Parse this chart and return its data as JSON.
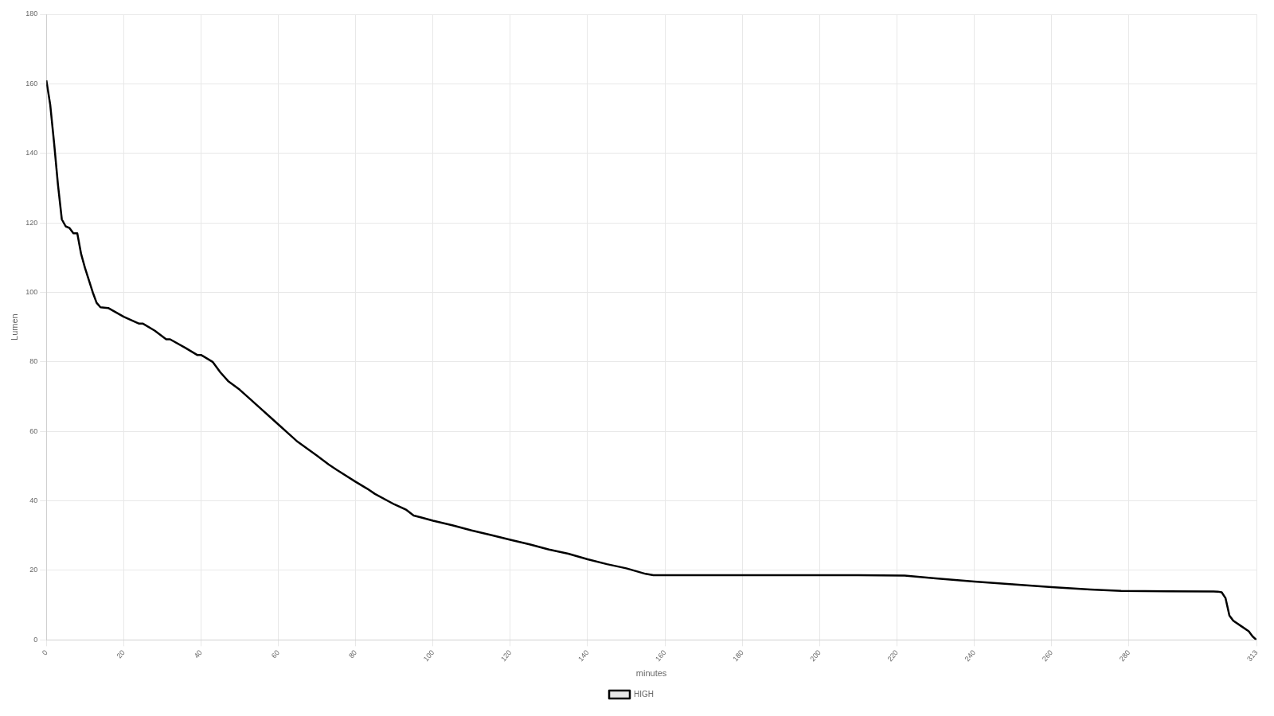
{
  "chart_data": {
    "type": "line",
    "xlabel": "minutes",
    "ylabel": "Lumen",
    "x": [
      0,
      1,
      2,
      3,
      4,
      5,
      6,
      7,
      8,
      9,
      10,
      12,
      13,
      14,
      16,
      20,
      24,
      25,
      28,
      31,
      32,
      36,
      39,
      40,
      43,
      45,
      47,
      50,
      53,
      55,
      58,
      60,
      63,
      65,
      70,
      73,
      75,
      80,
      83,
      85,
      90,
      93,
      95,
      97,
      100,
      105,
      110,
      115,
      120,
      125,
      130,
      135,
      140,
      145,
      150,
      155,
      157,
      160,
      210,
      222,
      230,
      240,
      250,
      260,
      270,
      278,
      290,
      303,
      304,
      305,
      306,
      307,
      309,
      311,
      312,
      313
    ],
    "series": [
      {
        "name": "HIGH",
        "color": "#000000",
        "values": [
          161,
          154,
          143,
          131,
          121,
          119,
          118.5,
          117,
          117,
          111,
          107,
          100,
          97,
          95.7,
          95.5,
          93,
          91,
          91,
          89,
          86.5,
          86.5,
          84,
          82,
          82,
          80,
          77,
          74.5,
          72,
          69,
          67,
          64,
          62,
          59,
          57,
          53,
          50.5,
          49,
          45.5,
          43.5,
          42,
          39,
          37.5,
          35.8,
          35.2,
          34.3,
          33,
          31.5,
          30.2,
          28.8,
          27.5,
          26,
          24.8,
          23.2,
          21.8,
          20.6,
          19,
          18.6,
          18.6,
          18.6,
          18.5,
          17.7,
          16.8,
          16,
          15.2,
          14.5,
          14.1,
          14,
          13.9,
          13.7,
          12,
          7,
          5.5,
          4,
          2.5,
          1,
          0
        ]
      }
    ],
    "xlim": [
      0,
      313
    ],
    "xticks": [
      0,
      20,
      40,
      60,
      80,
      100,
      120,
      140,
      160,
      180,
      200,
      220,
      240,
      260,
      280,
      313
    ],
    "ylim": [
      0,
      180
    ],
    "yticks": [
      0,
      20,
      40,
      60,
      80,
      100,
      120,
      140,
      160,
      180
    ],
    "grid": true,
    "legend": "bottom",
    "marker": "none",
    "line_style": "solid"
  }
}
